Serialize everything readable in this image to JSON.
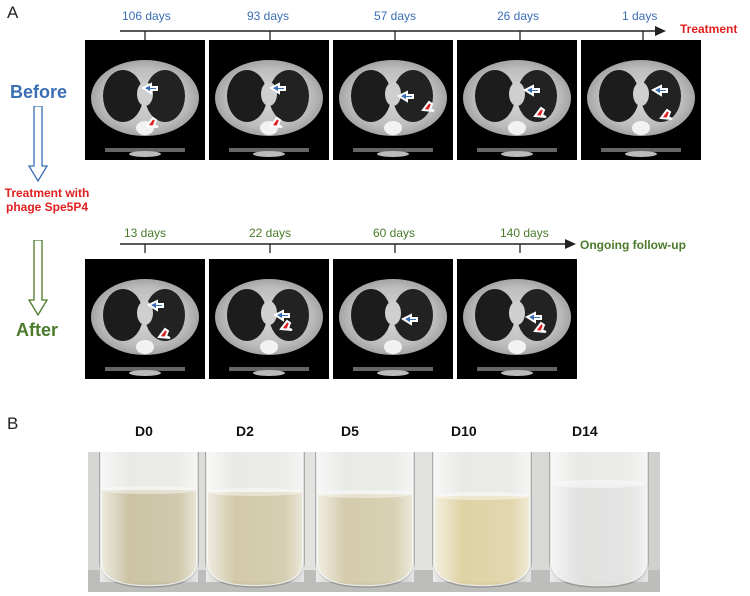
{
  "panel_a": {
    "letter": "A",
    "before_label": "Before",
    "after_label": "After",
    "treatment_with": "Treatment with",
    "phage_name": "phage Spe5P4",
    "top_timeline": {
      "labels": [
        "106 days",
        "93 days",
        "57 days",
        "26 days",
        "1 days"
      ],
      "end_label": "Treatment"
    },
    "bottom_timeline": {
      "labels": [
        "13 days",
        "22 days",
        "60 days",
        "140 days"
      ],
      "end_label": "Ongoing follow-up"
    }
  },
  "panel_b": {
    "letter": "B",
    "tubes": [
      {
        "label": "D0",
        "color": "#c9c0a0"
      },
      {
        "label": "D2",
        "color": "#cfc6a5"
      },
      {
        "label": "D5",
        "color": "#d2c9a8"
      },
      {
        "label": "D10",
        "color": "#ddd0a0"
      },
      {
        "label": "D14",
        "color": "#dfe0de"
      }
    ]
  },
  "colors": {
    "blue": "#3a6eb5",
    "green": "#4a7a2a",
    "red": "#e02020"
  }
}
